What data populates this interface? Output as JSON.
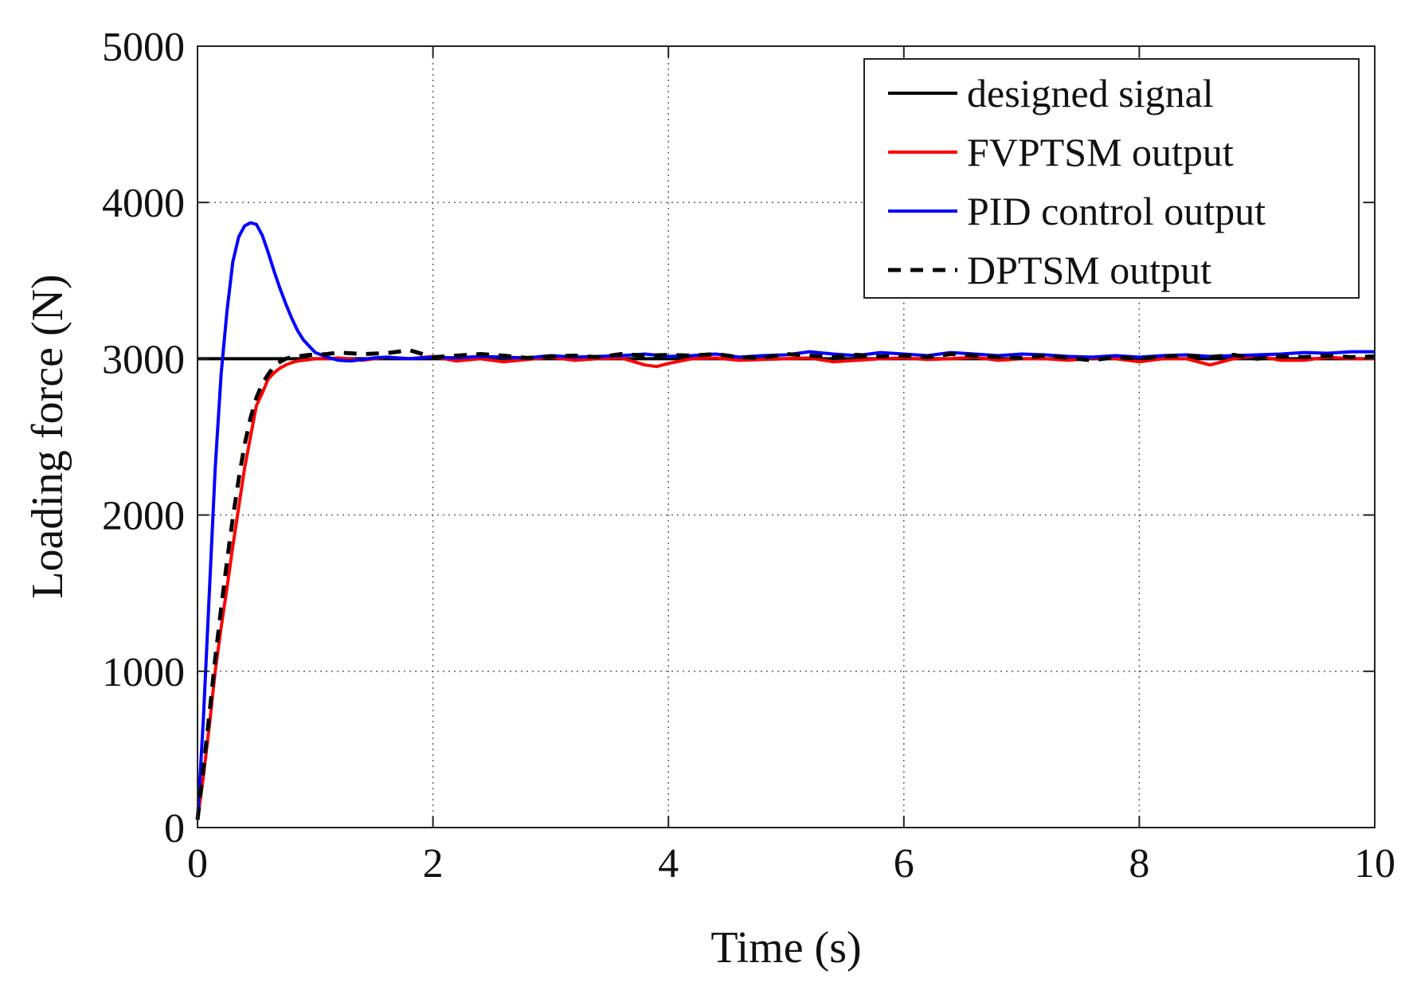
{
  "chart_data": {
    "type": "line",
    "title": "",
    "xlabel": "Time (s)",
    "ylabel": "Loading force (N)",
    "xlim": [
      0,
      10
    ],
    "ylim": [
      0,
      5000
    ],
    "xticks": [
      "0",
      "2",
      "4",
      "6",
      "8",
      "10"
    ],
    "yticks": [
      "0",
      "1000",
      "2000",
      "3000",
      "4000",
      "5000"
    ],
    "grid": true,
    "legend_position": "top-right",
    "series": [
      {
        "name": "designed signal",
        "color": "#000000",
        "style": "solid",
        "x": [
          0,
          10
        ],
        "y": [
          3000,
          3000
        ]
      },
      {
        "name": "FVPTSM output",
        "color": "#ff0000",
        "style": "solid",
        "x": [
          0,
          0.05,
          0.1,
          0.15,
          0.2,
          0.25,
          0.3,
          0.35,
          0.4,
          0.45,
          0.5,
          0.55,
          0.6,
          0.65,
          0.7,
          0.75,
          0.8,
          0.85,
          0.9,
          0.95,
          1.0,
          1.1,
          1.2,
          1.4,
          1.6,
          1.8,
          2.0,
          2.2,
          2.4,
          2.6,
          2.8,
          3.0,
          3.2,
          3.4,
          3.6,
          3.8,
          3.9,
          4.0,
          4.2,
          4.4,
          4.6,
          4.8,
          5.0,
          5.2,
          5.4,
          5.6,
          5.8,
          6.0,
          6.2,
          6.4,
          6.6,
          6.8,
          7.0,
          7.2,
          7.4,
          7.6,
          7.8,
          8.0,
          8.2,
          8.4,
          8.6,
          8.8,
          9.0,
          9.2,
          9.4,
          9.6,
          9.8,
          10.0
        ],
        "y": [
          50,
          330,
          650,
          1000,
          1280,
          1530,
          1800,
          2050,
          2300,
          2500,
          2700,
          2780,
          2870,
          2910,
          2940,
          2960,
          2975,
          2985,
          2990,
          2995,
          3000,
          3000,
          3005,
          2990,
          3010,
          3000,
          3015,
          2985,
          3000,
          2980,
          2995,
          3010,
          2990,
          3000,
          3005,
          2960,
          2950,
          2970,
          3000,
          3005,
          2990,
          2995,
          3000,
          3005,
          2980,
          2990,
          3000,
          3005,
          2995,
          3000,
          3010,
          2990,
          3000,
          3000,
          2990,
          3005,
          3000,
          2980,
          3000,
          3000,
          2960,
          3000,
          3020,
          2990,
          2990,
          3010,
          3000,
          3000
        ]
      },
      {
        "name": "PID control output",
        "color": "#0000ff",
        "style": "solid",
        "x": [
          0,
          0.05,
          0.1,
          0.15,
          0.2,
          0.25,
          0.3,
          0.35,
          0.4,
          0.45,
          0.5,
          0.55,
          0.6,
          0.65,
          0.7,
          0.75,
          0.8,
          0.85,
          0.9,
          0.95,
          1.0,
          1.1,
          1.2,
          1.3,
          1.4,
          1.5,
          1.6,
          1.8,
          2.0,
          2.2,
          2.4,
          2.6,
          2.8,
          3.0,
          3.2,
          3.4,
          3.6,
          3.8,
          4.0,
          4.2,
          4.4,
          4.6,
          4.8,
          5.0,
          5.2,
          5.4,
          5.6,
          5.8,
          6.0,
          6.2,
          6.4,
          6.6,
          6.8,
          7.0,
          7.2,
          7.4,
          7.6,
          7.8,
          8.0,
          8.2,
          8.4,
          8.6,
          8.8,
          9.0,
          9.2,
          9.4,
          9.6,
          9.8,
          10.0
        ],
        "y": [
          50,
          700,
          1500,
          2300,
          2900,
          3300,
          3620,
          3780,
          3850,
          3870,
          3860,
          3790,
          3680,
          3560,
          3450,
          3350,
          3260,
          3180,
          3120,
          3080,
          3040,
          3010,
          2990,
          2985,
          2995,
          3005,
          3010,
          3000,
          3010,
          3005,
          3015,
          3010,
          3005,
          3020,
          3010,
          3015,
          3020,
          3030,
          3015,
          3020,
          3030,
          3010,
          3020,
          3025,
          3045,
          3030,
          3020,
          3040,
          3030,
          3020,
          3040,
          3030,
          3020,
          3030,
          3025,
          3015,
          3010,
          3020,
          3010,
          3020,
          3025,
          3015,
          3020,
          3025,
          3030,
          3040,
          3035,
          3045,
          3045
        ]
      },
      {
        "name": "DPTSM output",
        "color": "#000000",
        "style": "dashed",
        "x": [
          0,
          0.05,
          0.1,
          0.15,
          0.2,
          0.25,
          0.3,
          0.35,
          0.4,
          0.45,
          0.5,
          0.55,
          0.6,
          0.65,
          0.7,
          0.75,
          0.8,
          0.85,
          0.9,
          0.95,
          1.0,
          1.1,
          1.2,
          1.4,
          1.6,
          1.8,
          2.0,
          2.2,
          2.4,
          2.6,
          2.8,
          3.0,
          3.2,
          3.4,
          3.6,
          3.8,
          4.0,
          4.2,
          4.4,
          4.6,
          4.8,
          5.0,
          5.2,
          5.4,
          5.6,
          5.8,
          6.0,
          6.2,
          6.4,
          6.6,
          6.8,
          7.0,
          7.2,
          7.4,
          7.6,
          7.8,
          8.0,
          8.2,
          8.4,
          8.6,
          8.8,
          9.0,
          9.2,
          9.4,
          9.6,
          9.8,
          10.0
        ],
        "y": [
          50,
          380,
          720,
          1080,
          1400,
          1700,
          1980,
          2230,
          2450,
          2620,
          2750,
          2840,
          2900,
          2950,
          2980,
          3000,
          3010,
          3015,
          3020,
          3025,
          3025,
          3030,
          3040,
          3030,
          3035,
          3055,
          3010,
          3020,
          3030,
          3020,
          3005,
          3015,
          3020,
          3010,
          3030,
          3020,
          3025,
          3020,
          3030,
          3010,
          3005,
          3030,
          3020,
          3010,
          3025,
          3015,
          3020,
          3010,
          3030,
          3020,
          3010,
          3005,
          3020,
          3005,
          2990,
          3010,
          3000,
          3015,
          3020,
          3010,
          3025,
          3000,
          3015,
          3010,
          3020,
          3010,
          3015
        ]
      }
    ]
  }
}
